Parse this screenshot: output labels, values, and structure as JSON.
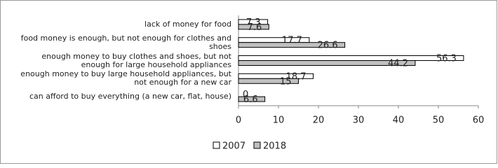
{
  "chart_data": {
    "type": "hbar",
    "categories": [
      "lack of money for food",
      "food money is enough, but not enough for clothes and shoes",
      "enough money to buy clothes and shoes, but not enough for large household appliances",
      "enough money to buy large household appliances, but not enough for a new car",
      "can afford to buy everything (a new car, flat, house)"
    ],
    "series": [
      {
        "name": "2007",
        "color": "#ffffff",
        "values": [
          7.3,
          17.7,
          56.3,
          18.7,
          0
        ]
      },
      {
        "name": "2018",
        "color": "#c0c0c0",
        "values": [
          7.6,
          26.6,
          44.2,
          15,
          6.6
        ]
      }
    ],
    "xlim": [
      0,
      60
    ],
    "xticks": [
      0,
      10,
      20,
      30,
      40,
      50,
      60
    ],
    "grid": false,
    "legend": "bottom"
  }
}
